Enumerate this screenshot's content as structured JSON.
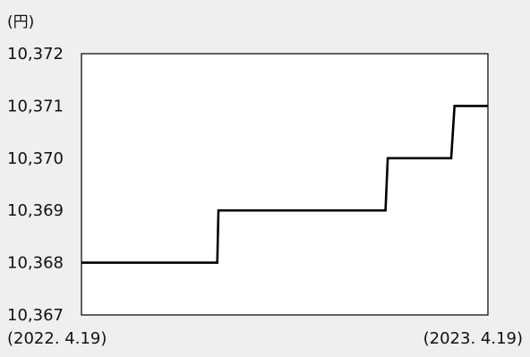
{
  "chart_data": {
    "type": "line",
    "step": true,
    "unit_label": "(円)",
    "title": "",
    "xlabel": "",
    "ylabel": "",
    "ylim": [
      10367,
      10372
    ],
    "y_ticks": [
      "10,367",
      "10,368",
      "10,369",
      "10,370",
      "10,371",
      "10,372"
    ],
    "x_tick_labels": [
      "(2022. 4.19)",
      "(2023. 4.19)"
    ],
    "xlim": [
      "2022-04-19",
      "2023-04-19"
    ],
    "grid": false,
    "legend": "none",
    "series": [
      {
        "points": [
          {
            "x": "2022-04-19",
            "y": 10368
          },
          {
            "x": "2022-08-19",
            "y": 10368
          },
          {
            "x": "2022-08-20",
            "y": 10369
          },
          {
            "x": "2023-01-17",
            "y": 10369
          },
          {
            "x": "2023-01-19",
            "y": 10370
          },
          {
            "x": "2023-03-17",
            "y": 10370
          },
          {
            "x": "2023-03-20",
            "y": 10371
          },
          {
            "x": "2023-04-19",
            "y": 10371
          }
        ]
      }
    ],
    "colors": {
      "line": "#000000",
      "frame": "#000000",
      "plot_background": "#ffffff",
      "page_background": "#efefef"
    }
  }
}
